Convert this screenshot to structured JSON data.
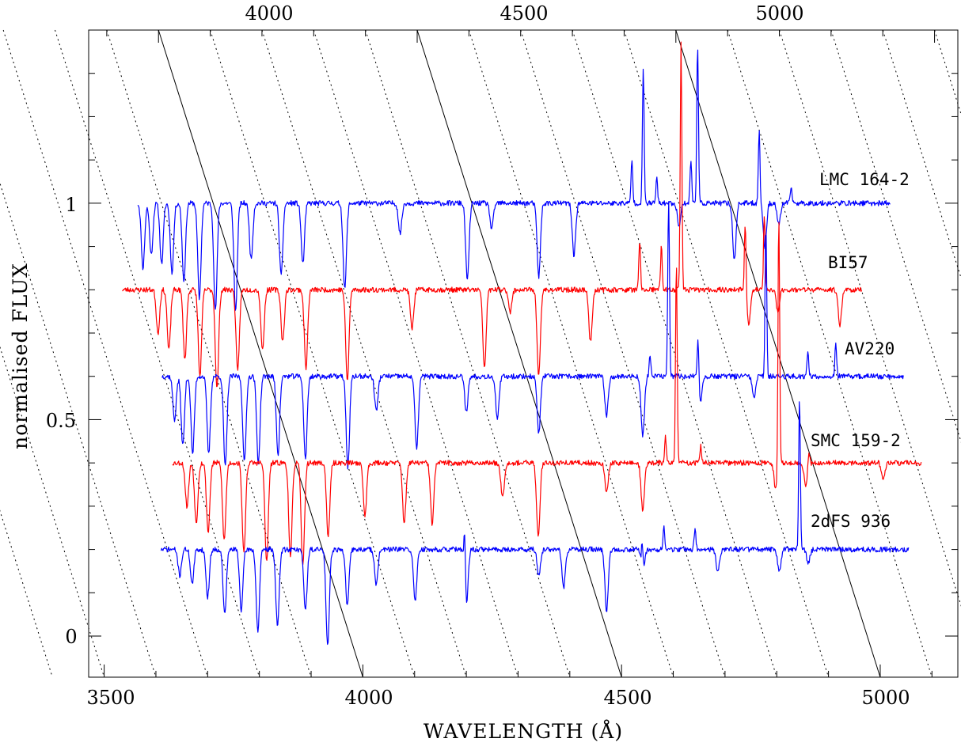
{
  "chart_data": {
    "type": "line",
    "xlabel": "WAVELENGTH (Å)",
    "ylabel": "normalised FLUX",
    "xlim": [
      3470,
      5150
    ],
    "ylim": [
      -0.095,
      1.4
    ],
    "x_ticks_bottom": [
      "3500",
      "4000",
      "4500",
      "5000"
    ],
    "x_ticks_top": [
      "4000",
      "4500",
      "5000"
    ],
    "y_ticks": [
      "0",
      "0.5",
      "1"
    ],
    "top_axis_note": "skewed wavelength axis; solid diagonal lines mark 4000/4500/5000, dotted lines every 100",
    "grid": false,
    "series": [
      {
        "name": "LMC 164-2",
        "color": "#0000ff",
        "offset": 1.0,
        "x_range": [
          3565,
          5020
        ],
        "seed": 11,
        "emission": [
          [
            4520,
            0.1
          ],
          [
            4542,
            0.31
          ],
          [
            4568,
            0.06
          ],
          [
            4634,
            0.1
          ],
          [
            4647,
            0.37
          ],
          [
            4766,
            0.17
          ],
          [
            4828,
            0.04
          ]
        ],
        "absorption": [
          [
            3575,
            0.15
          ],
          [
            3591,
            0.12
          ],
          [
            3611,
            0.14
          ],
          [
            3631,
            0.16
          ],
          [
            3654,
            0.18
          ],
          [
            3684,
            0.22
          ],
          [
            3715,
            0.25
          ],
          [
            3754,
            0.25
          ],
          [
            3784,
            0.13
          ],
          [
            3842,
            0.17
          ],
          [
            3884,
            0.14
          ],
          [
            3965,
            0.2
          ],
          [
            4072,
            0.07
          ],
          [
            4202,
            0.18
          ],
          [
            4249,
            0.06
          ],
          [
            4340,
            0.17
          ],
          [
            4408,
            0.12
          ],
          [
            4611,
            0.05
          ],
          [
            4718,
            0.13
          ],
          [
            4777,
            0.1
          ],
          [
            4804,
            0.05
          ]
        ]
      },
      {
        "name": "BI57",
        "color": "#ff0000",
        "offset": 0.8,
        "x_range": [
          3535,
          4965
        ],
        "seed": 23,
        "emission": [
          [
            4535,
            0.11
          ],
          [
            4577,
            0.1
          ],
          [
            4615,
            0.57
          ],
          [
            4739,
            0.16
          ],
          [
            4776,
            0.17
          ]
        ],
        "absorption": [
          [
            3604,
            0.1
          ],
          [
            3625,
            0.14
          ],
          [
            3656,
            0.16
          ],
          [
            3685,
            0.2
          ],
          [
            3718,
            0.23
          ],
          [
            3758,
            0.19
          ],
          [
            3806,
            0.14
          ],
          [
            3845,
            0.12
          ],
          [
            3890,
            0.18
          ],
          [
            3970,
            0.21
          ],
          [
            4095,
            0.09
          ],
          [
            4235,
            0.18
          ],
          [
            4285,
            0.05
          ],
          [
            4340,
            0.2
          ],
          [
            4440,
            0.12
          ],
          [
            4746,
            0.08
          ],
          [
            4802,
            0.05
          ],
          [
            4922,
            0.08
          ]
        ]
      },
      {
        "name": "AV220",
        "color": "#0000ff",
        "offset": 0.6,
        "x_range": [
          3612,
          5045
        ],
        "seed": 37,
        "emission": [
          [
            4555,
            0.05
          ],
          [
            4591,
            0.41
          ],
          [
            4648,
            0.11
          ],
          [
            4779,
            0.35
          ],
          [
            4860,
            0.06
          ],
          [
            4914,
            0.08
          ]
        ],
        "absorption": [
          [
            3636,
            0.1
          ],
          [
            3652,
            0.16
          ],
          [
            3671,
            0.18
          ],
          [
            3702,
            0.18
          ],
          [
            3734,
            0.21
          ],
          [
            3771,
            0.2
          ],
          [
            3798,
            0.2
          ],
          [
            3836,
            0.18
          ],
          [
            3889,
            0.19
          ],
          [
            3971,
            0.21
          ],
          [
            4026,
            0.08
          ],
          [
            4104,
            0.17
          ],
          [
            4200,
            0.08
          ],
          [
            4260,
            0.1
          ],
          [
            4340,
            0.13
          ],
          [
            4471,
            0.09
          ],
          [
            4541,
            0.14
          ],
          [
            4652,
            0.06
          ],
          [
            4756,
            0.05
          ]
        ]
      },
      {
        "name": "SMC 159-2",
        "color": "#ff0000",
        "offset": 0.4,
        "x_range": [
          3632,
          5080
        ],
        "seed": 53,
        "emission": [
          [
            4585,
            0.06
          ],
          [
            4606,
            0.46
          ],
          [
            4653,
            0.04
          ],
          [
            4804,
            0.58
          ],
          [
            4862,
            0.03
          ]
        ],
        "absorption": [
          [
            3660,
            0.1
          ],
          [
            3678,
            0.14
          ],
          [
            3701,
            0.16
          ],
          [
            3732,
            0.18
          ],
          [
            3770,
            0.21
          ],
          [
            3814,
            0.23
          ],
          [
            3860,
            0.22
          ],
          [
            3884,
            0.24
          ],
          [
            3933,
            0.17
          ],
          [
            4004,
            0.12
          ],
          [
            4080,
            0.14
          ],
          [
            4134,
            0.14
          ],
          [
            4270,
            0.08
          ],
          [
            4339,
            0.17
          ],
          [
            4471,
            0.07
          ],
          [
            4541,
            0.11
          ],
          [
            4798,
            0.06
          ],
          [
            4856,
            0.05
          ],
          [
            5006,
            0.04
          ]
        ]
      },
      {
        "name": "2dFS 936",
        "color": "#0000ff",
        "offset": 0.2,
        "x_range": [
          3610,
          5055
        ],
        "seed": 71,
        "emission": [
          [
            4197,
            0.12
          ],
          [
            4540,
            0.07
          ],
          [
            4582,
            0.05
          ],
          [
            4642,
            0.05
          ],
          [
            4844,
            0.35
          ]
        ],
        "absorption": [
          [
            3646,
            0.06
          ],
          [
            3670,
            0.08
          ],
          [
            3700,
            0.11
          ],
          [
            3733,
            0.15
          ],
          [
            3765,
            0.14
          ],
          [
            3797,
            0.19
          ],
          [
            3835,
            0.18
          ],
          [
            3889,
            0.14
          ],
          [
            3932,
            0.22
          ],
          [
            3970,
            0.13
          ],
          [
            4026,
            0.08
          ],
          [
            4101,
            0.12
          ],
          [
            4200,
            0.14
          ],
          [
            4340,
            0.06
          ],
          [
            4388,
            0.09
          ],
          [
            4471,
            0.14
          ],
          [
            4541,
            0.06
          ],
          [
            4686,
            0.05
          ],
          [
            4805,
            0.05
          ],
          [
            4861,
            0.03
          ]
        ]
      }
    ]
  }
}
